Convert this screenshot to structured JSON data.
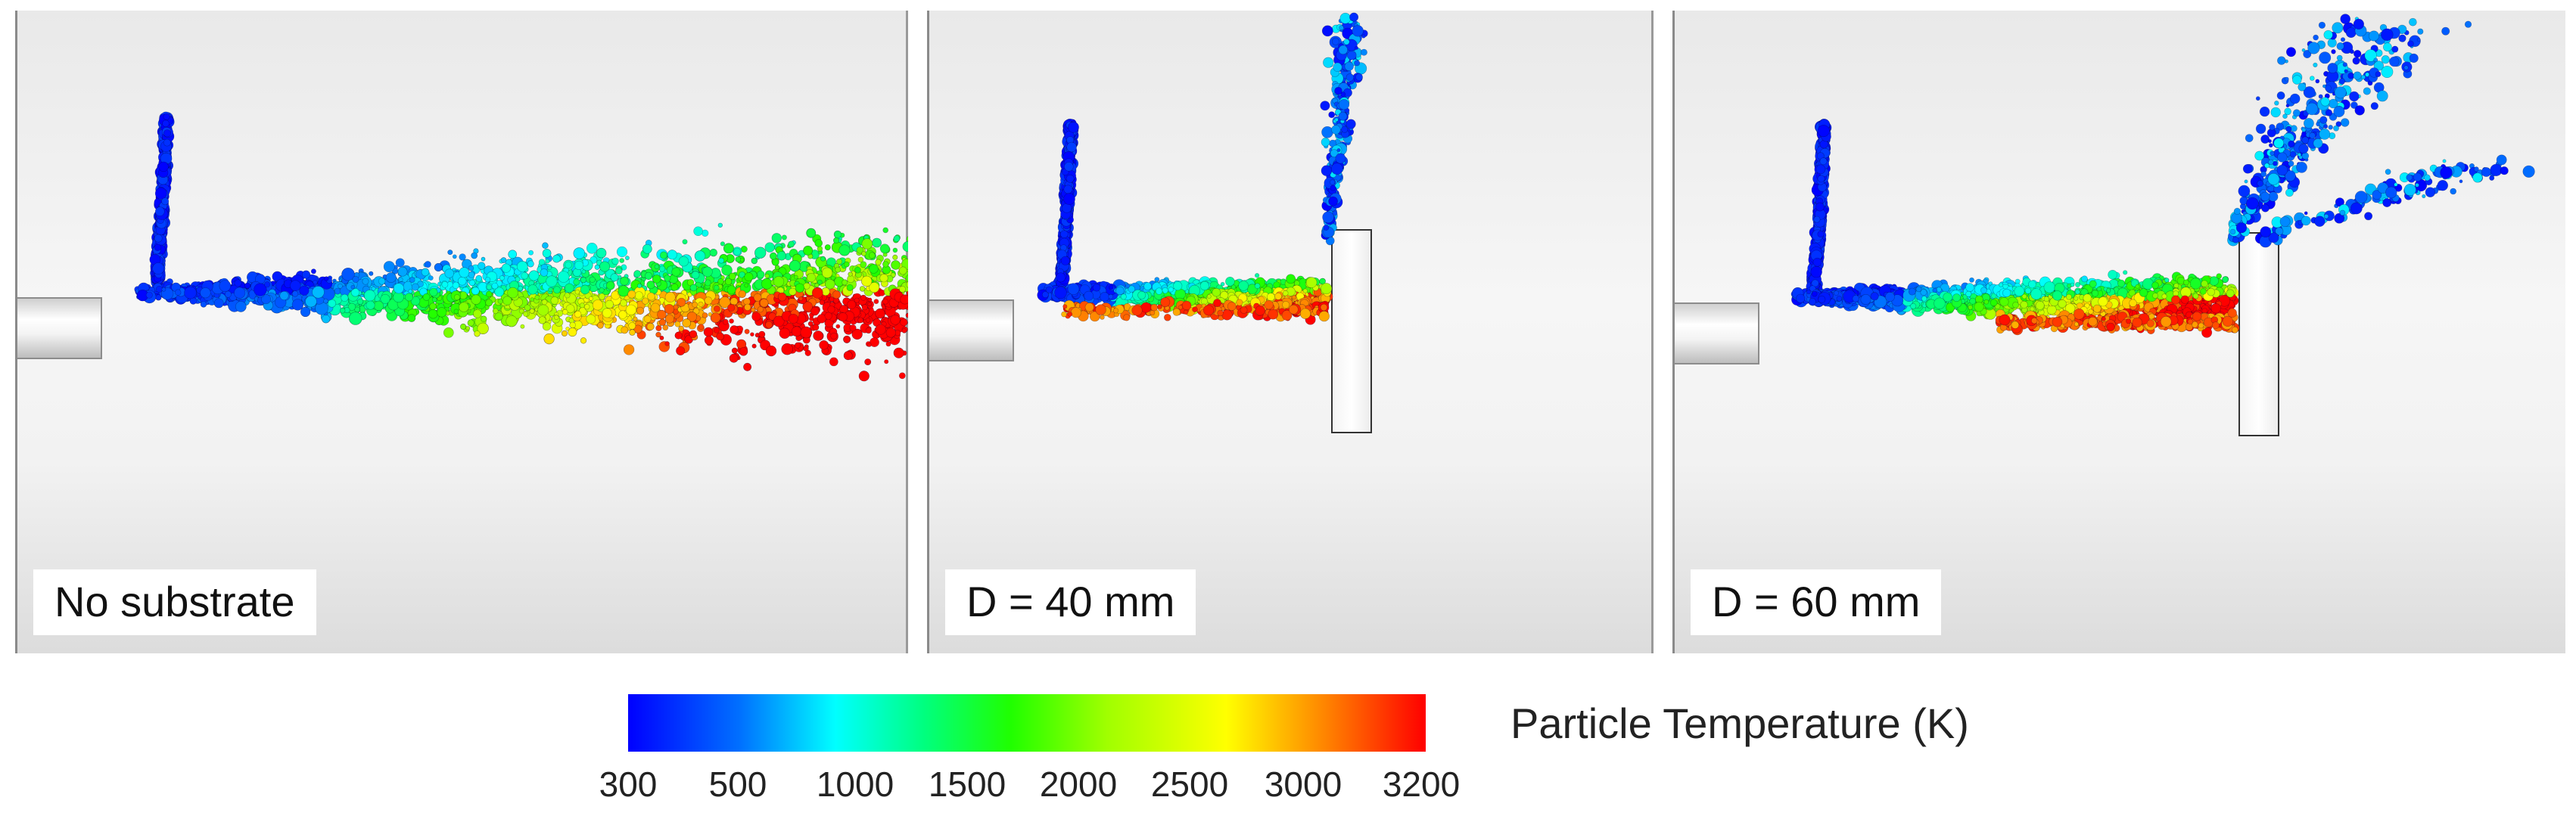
{
  "panels": [
    {
      "label": "No substrate",
      "substrate": false,
      "config": "free-jet"
    },
    {
      "label": "D = 40 mm",
      "substrate": true,
      "config": "near-substrate"
    },
    {
      "label": "D = 60 mm",
      "substrate": true,
      "config": "far-substrate"
    }
  ],
  "colorbar": {
    "title": "Particle Temperature (K)",
    "ticks": [
      "300",
      "500",
      "1000",
      "1500",
      "2000",
      "2500",
      "3000",
      "3200"
    ],
    "tick_values": [
      300,
      500,
      1000,
      1500,
      2000,
      2500,
      3000,
      3200
    ],
    "range": [
      300,
      3200
    ],
    "colors": [
      "#0000ff",
      "#00ffff",
      "#00ff00",
      "#ffff00",
      "#ff8800",
      "#ff0000"
    ]
  }
}
